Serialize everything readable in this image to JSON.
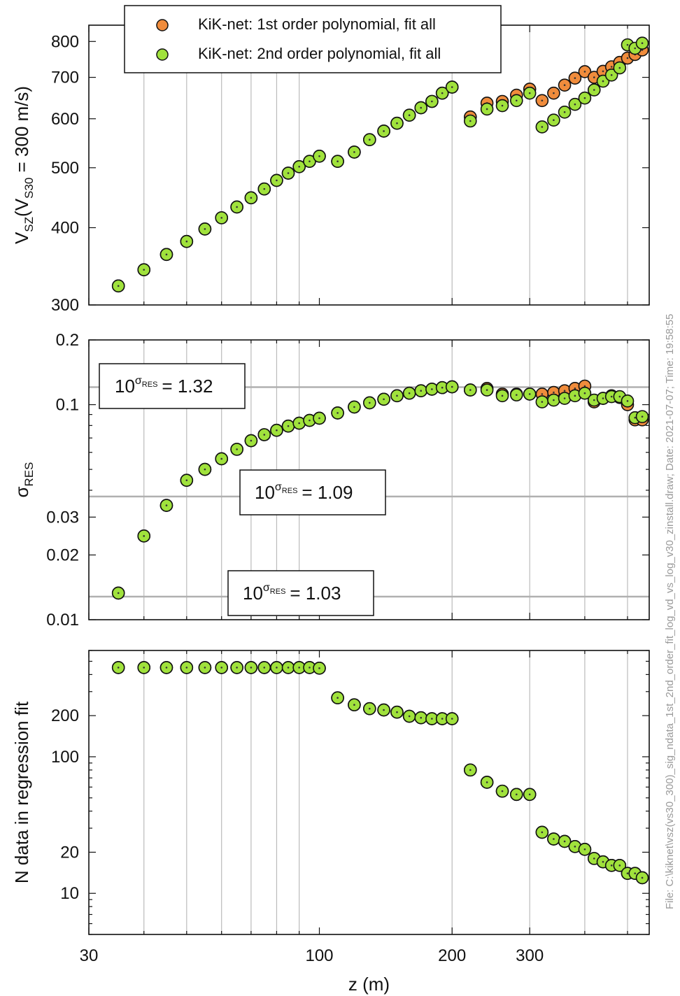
{
  "side_note": "File: C:\\kiknet\\vsz(vs30_300)_sig_ndata_1st_2nd_order_fit_log_vd_vs_log_v30_zinstall.draw; Date: 2021-07-07; Time: 19:58:55",
  "legend": [
    {
      "label": "KiK-net: 1st order polynomial, fit all",
      "color": "#f08c3c"
    },
    {
      "label": "KiK-net: 2nd order polynomial, fit all",
      "color": "#a0e23c"
    }
  ],
  "annotations": [
    {
      "base": "10",
      "exp": "σ",
      "exp_sub": "RES",
      "value": "= 1.32"
    },
    {
      "base": "10",
      "exp": "σ",
      "exp_sub": "RES",
      "value": "= 1.09"
    },
    {
      "base": "10",
      "exp": "σ",
      "exp_sub": "RES",
      "value": "= 1.03"
    }
  ],
  "colors": {
    "orange": "#f08c3c",
    "green": "#a0e23c",
    "grid": "#bbbbbb",
    "ref_line": "#b0b0b0"
  },
  "chart_data": [
    {
      "type": "scatter",
      "xscale": "log",
      "yscale": "log",
      "xlim": [
        30,
        560
      ],
      "ylim": [
        300,
        850
      ],
      "xlabel": "",
      "ylabel": "VSZ(VS30 = 300 m/s)",
      "ylabel_parts": {
        "main": "V",
        "sub1": "SZ",
        "mid": "(V",
        "sub2": "S30",
        "tail": " = 300 m/s)"
      },
      "yticks": [
        300,
        400,
        500,
        600,
        700,
        800
      ],
      "series": [
        {
          "name": "KiK-net: 1st order polynomial, fit all",
          "x": [
            35,
            40,
            45,
            50,
            55,
            60,
            65,
            70,
            75,
            80,
            85,
            90,
            95,
            100,
            110,
            120,
            130,
            140,
            150,
            160,
            170,
            180,
            190,
            200,
            220,
            240,
            260,
            280,
            300,
            320,
            340,
            360,
            380,
            400,
            420,
            440,
            460,
            480,
            500,
            520,
            540
          ],
          "y": [
            322,
            342,
            362,
            380,
            398,
            415,
            432,
            447,
            462,
            477,
            490,
            502,
            512,
            522,
            512,
            530,
            555,
            573,
            590,
            608,
            625,
            640,
            660,
            675,
            604,
            636,
            640,
            655,
            670,
            642,
            660,
            680,
            698,
            715,
            700,
            716,
            728,
            740,
            752,
            762,
            775
          ]
        },
        {
          "name": "KiK-net: 2nd order polynomial, fit all",
          "x": [
            35,
            40,
            45,
            50,
            55,
            60,
            65,
            70,
            75,
            80,
            85,
            90,
            95,
            100,
            110,
            120,
            130,
            140,
            150,
            160,
            170,
            180,
            190,
            200,
            220,
            240,
            260,
            280,
            300,
            320,
            340,
            360,
            380,
            400,
            420,
            440,
            460,
            480,
            500,
            520,
            540
          ],
          "y": [
            322,
            342,
            362,
            380,
            398,
            415,
            432,
            447,
            462,
            477,
            490,
            502,
            512,
            522,
            512,
            530,
            555,
            573,
            590,
            608,
            625,
            640,
            660,
            675,
            595,
            622,
            630,
            642,
            660,
            582,
            597,
            615,
            633,
            648,
            668,
            690,
            706,
            725,
            790,
            780,
            795
          ]
        }
      ]
    },
    {
      "type": "scatter",
      "xscale": "log",
      "yscale": "log",
      "xlim": [
        30,
        560
      ],
      "ylim": [
        0.01,
        0.2
      ],
      "xlabel": "",
      "ylabel": "σRES",
      "ylabel_parts": {
        "main": "σ",
        "sub1": "RES"
      },
      "yticks": [
        0.01,
        0.02,
        0.03,
        0.1,
        0.2
      ],
      "ref_lines": [
        0.1206,
        0.0374,
        0.0128
      ],
      "series": [
        {
          "name": "KiK-net: 1st order polynomial, fit all",
          "x": [
            35,
            40,
            45,
            50,
            55,
            60,
            65,
            70,
            75,
            80,
            85,
            90,
            95,
            100,
            110,
            120,
            130,
            140,
            150,
            160,
            170,
            180,
            190,
            200,
            220,
            240,
            260,
            280,
            300,
            320,
            340,
            360,
            380,
            400,
            420,
            440,
            460,
            480,
            500,
            520,
            540
          ],
          "y": [
            0.0133,
            0.0245,
            0.034,
            0.0445,
            0.05,
            0.056,
            0.062,
            0.068,
            0.0725,
            0.076,
            0.0795,
            0.082,
            0.0845,
            0.0865,
            0.0915,
            0.0975,
            0.102,
            0.106,
            0.11,
            0.113,
            0.116,
            0.118,
            0.12,
            0.121,
            0.117,
            0.119,
            0.112,
            0.112,
            0.112,
            0.112,
            0.114,
            0.116,
            0.119,
            0.122,
            0.103,
            0.107,
            0.11,
            0.108,
            0.1,
            0.085,
            0.085
          ]
        },
        {
          "name": "KiK-net: 2nd order polynomial, fit all",
          "x": [
            35,
            40,
            45,
            50,
            55,
            60,
            65,
            70,
            75,
            80,
            85,
            90,
            95,
            100,
            110,
            120,
            130,
            140,
            150,
            160,
            170,
            180,
            190,
            200,
            220,
            240,
            260,
            280,
            300,
            320,
            340,
            360,
            380,
            400,
            420,
            440,
            460,
            480,
            500,
            520,
            540
          ],
          "y": [
            0.0133,
            0.0245,
            0.034,
            0.0445,
            0.05,
            0.056,
            0.062,
            0.068,
            0.0725,
            0.076,
            0.0795,
            0.082,
            0.0845,
            0.0865,
            0.0915,
            0.0975,
            0.102,
            0.106,
            0.11,
            0.113,
            0.116,
            0.118,
            0.12,
            0.121,
            0.117,
            0.117,
            0.11,
            0.111,
            0.112,
            0.103,
            0.105,
            0.107,
            0.11,
            0.113,
            0.105,
            0.107,
            0.109,
            0.109,
            0.104,
            0.087,
            0.088
          ]
        }
      ]
    },
    {
      "type": "scatter",
      "xscale": "log",
      "yscale": "log",
      "xlim": [
        30,
        560
      ],
      "ylim": [
        5,
        600
      ],
      "xlabel": "z (m)",
      "ylabel": "N data in regression fit",
      "xticks": [
        30,
        100,
        200,
        300
      ],
      "yticks": [
        10,
        20,
        100,
        200
      ],
      "series": [
        {
          "name": "KiK-net: 1st order polynomial, fit all",
          "x": [
            35,
            40,
            45,
            50,
            55,
            60,
            65,
            70,
            75,
            80,
            85,
            90,
            95,
            100,
            110,
            120,
            130,
            140,
            150,
            160,
            170,
            180,
            190,
            200,
            220,
            240,
            260,
            280,
            300,
            320,
            340,
            360,
            380,
            400,
            420,
            440,
            460,
            480,
            500,
            520,
            540
          ],
          "y": [
            450,
            450,
            450,
            450,
            450,
            450,
            450,
            450,
            450,
            450,
            450,
            450,
            450,
            445,
            270,
            240,
            225,
            220,
            212,
            198,
            193,
            190,
            190,
            190,
            80,
            65,
            56,
            53,
            53,
            28,
            25,
            24,
            22,
            21,
            18,
            17,
            16,
            16,
            14,
            14,
            13
          ]
        },
        {
          "name": "KiK-net: 2nd order polynomial, fit all",
          "x": [
            35,
            40,
            45,
            50,
            55,
            60,
            65,
            70,
            75,
            80,
            85,
            90,
            95,
            100,
            110,
            120,
            130,
            140,
            150,
            160,
            170,
            180,
            190,
            200,
            220,
            240,
            260,
            280,
            300,
            320,
            340,
            360,
            380,
            400,
            420,
            440,
            460,
            480,
            500,
            520,
            540
          ],
          "y": [
            450,
            450,
            450,
            450,
            450,
            450,
            450,
            450,
            450,
            450,
            450,
            450,
            450,
            445,
            270,
            240,
            225,
            220,
            212,
            198,
            193,
            190,
            190,
            190,
            80,
            65,
            56,
            53,
            53,
            28,
            25,
            24,
            22,
            21,
            18,
            17,
            16,
            16,
            14,
            14,
            13
          ]
        }
      ]
    }
  ]
}
